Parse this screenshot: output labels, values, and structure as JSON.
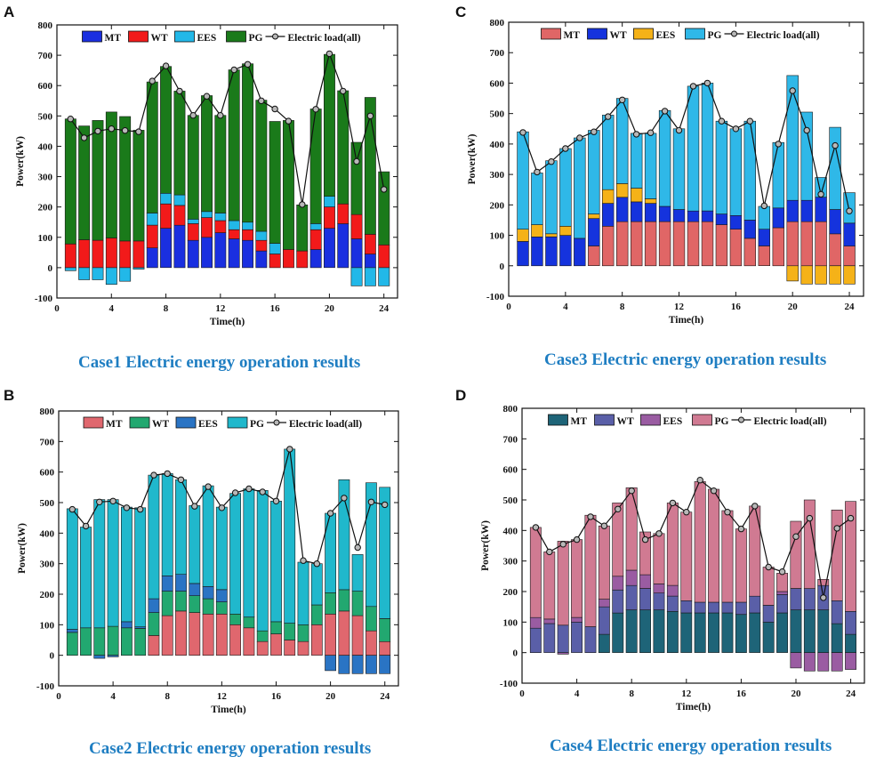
{
  "figure": {
    "panel_letters": [
      "A",
      "C",
      "B",
      "D"
    ],
    "captions": [
      "Case1 Electric energy operation results",
      "Case3 Electric energy operation results",
      "Case2 Electric energy operation results",
      "Case4 Electric energy operation results"
    ]
  },
  "chart_data": [
    {
      "type": "bar",
      "stacked": true,
      "title": "Case1 Electric energy operation results",
      "panel": "A",
      "xlabel": "Time(h)",
      "ylabel": "Power(kW)",
      "ylim": [
        -100,
        800
      ],
      "yticks": [
        -100,
        0,
        100,
        200,
        300,
        400,
        500,
        600,
        700,
        800
      ],
      "xlim": [
        0,
        25
      ],
      "xticks": [
        0,
        4,
        8,
        12,
        16,
        20,
        24
      ],
      "x": [
        1,
        2,
        3,
        4,
        5,
        6,
        7,
        8,
        9,
        10,
        11,
        12,
        13,
        14,
        15,
        16,
        17,
        18,
        19,
        20,
        21,
        22,
        23,
        24
      ],
      "legend_placement": "top",
      "series": [
        {
          "name": "MT",
          "color": "#1a2fe0",
          "values": [
            0,
            0,
            0,
            0,
            0,
            0,
            65,
            130,
            140,
            90,
            100,
            115,
            95,
            90,
            55,
            0,
            0,
            0,
            60,
            130,
            145,
            95,
            45,
            0
          ]
        },
        {
          "name": "WT",
          "color": "#f21a1a",
          "values": [
            78,
            92,
            90,
            98,
            88,
            88,
            75,
            80,
            65,
            55,
            65,
            40,
            30,
            35,
            35,
            45,
            60,
            55,
            65,
            70,
            65,
            80,
            65,
            75
          ]
        },
        {
          "name": "EES",
          "color": "#22b8e8",
          "values": [
            -10,
            -40,
            -40,
            -55,
            -45,
            -5,
            40,
            35,
            35,
            15,
            20,
            25,
            30,
            25,
            30,
            35,
            0,
            0,
            20,
            35,
            0,
            -60,
            -60,
            -60
          ]
        },
        {
          "name": "PG",
          "color": "#1a7a1a",
          "values": [
            412,
            375,
            395,
            415,
            410,
            365,
            432,
            418,
            342,
            342,
            382,
            322,
            497,
            522,
            432,
            402,
            425,
            152,
            378,
            468,
            373,
            238,
            451,
            241
          ]
        }
      ],
      "line": {
        "name": "Electric load(all)",
        "values": [
          490,
          428,
          450,
          458,
          452,
          448,
          615,
          665,
          582,
          502,
          565,
          502,
          652,
          670,
          550,
          523,
          483,
          208,
          522,
          705,
          582,
          350,
          500,
          258
        ]
      }
    },
    {
      "type": "bar",
      "stacked": true,
      "title": "Case3 Electric energy operation results",
      "panel": "C",
      "xlabel": "Time(h)",
      "ylabel": "Power(kW)",
      "ylim": [
        -100,
        800
      ],
      "yticks": [
        -100,
        0,
        100,
        200,
        300,
        400,
        500,
        600,
        700,
        800
      ],
      "xlim": [
        0,
        25
      ],
      "xticks": [
        0,
        4,
        8,
        12,
        16,
        20,
        24
      ],
      "x": [
        1,
        2,
        3,
        4,
        5,
        6,
        7,
        8,
        9,
        10,
        11,
        12,
        13,
        14,
        15,
        16,
        17,
        18,
        19,
        20,
        21,
        22,
        23,
        24
      ],
      "legend_placement": "top",
      "series": [
        {
          "name": "MT",
          "color": "#e06666",
          "values": [
            0,
            0,
            0,
            0,
            0,
            65,
            130,
            145,
            145,
            145,
            145,
            145,
            145,
            145,
            135,
            120,
            90,
            65,
            125,
            145,
            145,
            145,
            105,
            65
          ]
        },
        {
          "name": "WT",
          "color": "#1533dd",
          "values": [
            80,
            95,
            95,
            100,
            90,
            90,
            75,
            80,
            65,
            60,
            50,
            40,
            35,
            35,
            35,
            45,
            60,
            55,
            65,
            70,
            70,
            80,
            80,
            75
          ]
        },
        {
          "name": "EES",
          "color": "#f5b218",
          "values": [
            40,
            40,
            10,
            30,
            0,
            15,
            45,
            45,
            45,
            15,
            0,
            0,
            0,
            0,
            0,
            0,
            0,
            0,
            0,
            -50,
            -60,
            -60,
            -60,
            -60
          ]
        },
        {
          "name": "PG",
          "color": "#2fb8e8",
          "values": [
            320,
            170,
            240,
            255,
            330,
            275,
            245,
            280,
            180,
            215,
            315,
            265,
            410,
            420,
            305,
            285,
            325,
            75,
            215,
            410,
            290,
            65,
            270,
            100
          ]
        }
      ],
      "line": {
        "name": "Electric load(all)",
        "values": [
          438,
          308,
          342,
          385,
          420,
          440,
          490,
          545,
          432,
          437,
          508,
          445,
          590,
          600,
          475,
          450,
          475,
          197,
          400,
          575,
          445,
          235,
          395,
          180
        ]
      }
    },
    {
      "type": "bar",
      "stacked": true,
      "title": "Case2 Electric energy operation results",
      "panel": "B",
      "xlabel": "Time(h)",
      "ylabel": "Power(kW)",
      "ylim": [
        -100,
        800
      ],
      "yticks": [
        -100,
        0,
        100,
        200,
        300,
        400,
        500,
        600,
        700,
        800
      ],
      "xlim": [
        0,
        25
      ],
      "xticks": [
        0,
        4,
        8,
        12,
        16,
        20,
        24
      ],
      "x": [
        1,
        2,
        3,
        4,
        5,
        6,
        7,
        8,
        9,
        10,
        11,
        12,
        13,
        14,
        15,
        16,
        17,
        18,
        19,
        20,
        21,
        22,
        23,
        24
      ],
      "legend_placement": "top",
      "series": [
        {
          "name": "MT",
          "color": "#e0676e",
          "values": [
            0,
            0,
            0,
            0,
            0,
            0,
            65,
            130,
            145,
            140,
            135,
            135,
            100,
            90,
            45,
            70,
            50,
            45,
            100,
            135,
            145,
            130,
            80,
            45
          ]
        },
        {
          "name": "WT",
          "color": "#22a870",
          "values": [
            75,
            90,
            90,
            95,
            90,
            88,
            75,
            80,
            65,
            55,
            50,
            40,
            35,
            35,
            35,
            40,
            55,
            55,
            65,
            70,
            70,
            80,
            80,
            75
          ]
        },
        {
          "name": "EES",
          "color": "#2a74c4",
          "values": [
            10,
            0,
            -10,
            -5,
            20,
            5,
            45,
            50,
            55,
            40,
            40,
            40,
            0,
            0,
            0,
            0,
            0,
            0,
            0,
            -50,
            -60,
            -60,
            -60,
            -60
          ]
        },
        {
          "name": "PG",
          "color": "#20b8cc",
          "values": [
            395,
            330,
            420,
            415,
            375,
            390,
            405,
            335,
            310,
            255,
            330,
            270,
            395,
            420,
            460,
            395,
            570,
            205,
            135,
            260,
            360,
            120,
            405,
            430
          ]
        }
      ],
      "line": {
        "name": "Electric load(all)",
        "values": [
          478,
          423,
          502,
          505,
          483,
          478,
          590,
          595,
          575,
          488,
          552,
          483,
          532,
          545,
          535,
          505,
          675,
          310,
          300,
          465,
          515,
          353,
          502,
          493
        ]
      }
    },
    {
      "type": "bar",
      "stacked": true,
      "title": "Case4 Electric energy operation results",
      "panel": "D",
      "xlabel": "Time(h)",
      "ylabel": "Power(kW)",
      "ylim": [
        -100,
        800
      ],
      "yticks": [
        -100,
        0,
        100,
        200,
        300,
        400,
        500,
        600,
        700,
        800
      ],
      "xlim": [
        0,
        25
      ],
      "xticks": [
        0,
        4,
        8,
        12,
        16,
        20,
        24
      ],
      "x": [
        1,
        2,
        3,
        4,
        5,
        6,
        7,
        8,
        9,
        10,
        11,
        12,
        13,
        14,
        15,
        16,
        17,
        18,
        19,
        20,
        21,
        22,
        23,
        24
      ],
      "legend_placement": "top",
      "series": [
        {
          "name": "MT",
          "color": "#1e6478",
          "values": [
            0,
            0,
            0,
            0,
            0,
            60,
            130,
            140,
            140,
            140,
            135,
            130,
            130,
            130,
            130,
            125,
            130,
            100,
            130,
            140,
            140,
            140,
            95,
            60
          ]
        },
        {
          "name": "WT",
          "color": "#5a5fa8",
          "values": [
            80,
            95,
            90,
            100,
            85,
            90,
            75,
            80,
            70,
            55,
            50,
            40,
            35,
            35,
            35,
            40,
            55,
            55,
            60,
            70,
            70,
            80,
            75,
            75
          ]
        },
        {
          "name": "EES",
          "color": "#9a5ca2",
          "values": [
            35,
            15,
            -5,
            15,
            0,
            25,
            45,
            50,
            45,
            30,
            35,
            0,
            0,
            0,
            0,
            0,
            0,
            0,
            10,
            -50,
            -60,
            -60,
            -60,
            -55
          ]
        },
        {
          "name": "PG",
          "color": "#d07a92",
          "values": [
            295,
            220,
            275,
            255,
            365,
            240,
            240,
            270,
            140,
            165,
            270,
            290,
            395,
            370,
            300,
            240,
            295,
            125,
            60,
            220,
            290,
            20,
            297,
            360
          ]
        }
      ],
      "line": {
        "name": "Electric load(all)",
        "values": [
          410,
          330,
          355,
          370,
          445,
          415,
          470,
          530,
          370,
          390,
          490,
          460,
          565,
          530,
          460,
          405,
          480,
          280,
          265,
          380,
          440,
          180,
          407,
          440
        ]
      }
    }
  ]
}
